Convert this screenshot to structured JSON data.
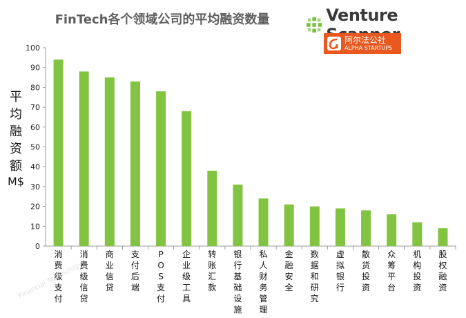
{
  "header": {
    "title": "FinTech各个领域公司的平均融资数量"
  },
  "brand": {
    "name": "Venture Scanner",
    "badge_cn": "阿尔法公社",
    "badge_en": "ALPHA STARTUPS",
    "accent": "#e8581f",
    "logo_color": "#7cc242"
  },
  "watermark": "Financial Technology",
  "chart_data": {
    "type": "bar",
    "categories": [
      "消费级支付",
      "消费级信贷",
      "商业信贷",
      "支付后端",
      "POS支付",
      "企业级工具",
      "转账汇款",
      "银行基础设施",
      "私人财务管理",
      "金融安全",
      "数据和研究",
      "虚拟银行",
      "散货投资",
      "众筹平台",
      "机构投资",
      "股权融资"
    ],
    "values": [
      94,
      88,
      85,
      83,
      78,
      68,
      38,
      31,
      24,
      21,
      20,
      19,
      18,
      16,
      12,
      9
    ],
    "ylabel": "平均融资额",
    "yunit": "M$",
    "ylim": [
      0,
      100
    ],
    "yticks": [
      0,
      10,
      20,
      30,
      40,
      50,
      60,
      70,
      80,
      90,
      100
    ],
    "grid": false,
    "bar_color": "#82c341"
  }
}
